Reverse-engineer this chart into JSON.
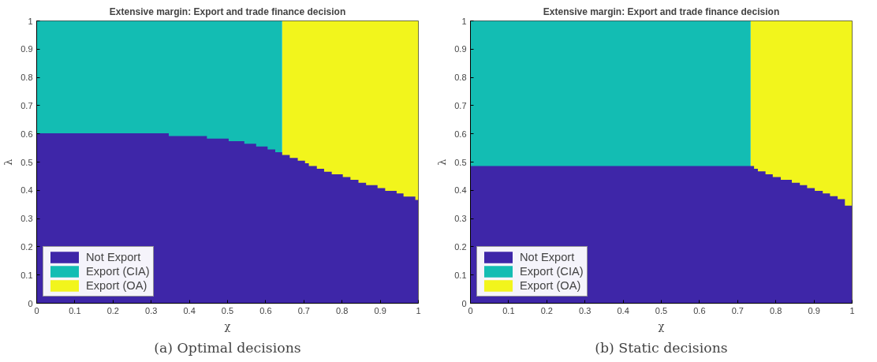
{
  "chart_data": [
    {
      "type": "area",
      "title": "Extensive margin: Export and trade finance decision",
      "xlabel": "χ",
      "ylabel": "λ",
      "annotations": [
        "(a) Optimal decisions"
      ],
      "legend": "bottom left",
      "grid": false,
      "xlim": [
        0,
        1
      ],
      "ylim": [
        0,
        1
      ],
      "xticks": [
        0,
        0.1,
        0.2,
        0.3,
        0.4,
        0.5,
        0.6,
        0.7,
        0.8,
        0.9,
        1
      ],
      "yticks": [
        0,
        0.1,
        0.2,
        0.3,
        0.4,
        0.5,
        0.6,
        0.7,
        0.8,
        0.9,
        1
      ],
      "series": [
        {
          "name": "Not Export",
          "color": "#3e26a8",
          "x": [
            0,
            0.346,
            0.346,
            0.446,
            0.446,
            0.503,
            0.503,
            0.544,
            0.544,
            0.575,
            0.575,
            0.605,
            0.605,
            0.625,
            0.625,
            0.643,
            0.643,
            0.663,
            0.663,
            0.684,
            0.684,
            0.703,
            0.703,
            0.713,
            0.713,
            0.734,
            0.734,
            0.753,
            0.753,
            0.773,
            0.773,
            0.802,
            0.802,
            0.822,
            0.822,
            0.843,
            0.843,
            0.863,
            0.863,
            0.893,
            0.893,
            0.913,
            0.913,
            0.943,
            0.943,
            0.961,
            0.961,
            0.992,
            0.992,
            1
          ],
          "values": [
            0.602,
            0.602,
            0.592,
            0.592,
            0.583,
            0.583,
            0.574,
            0.574,
            0.565,
            0.565,
            0.555,
            0.555,
            0.545,
            0.545,
            0.535,
            0.535,
            0.525,
            0.525,
            0.515,
            0.515,
            0.505,
            0.505,
            0.496,
            0.496,
            0.486,
            0.486,
            0.476,
            0.476,
            0.466,
            0.466,
            0.457,
            0.457,
            0.447,
            0.447,
            0.437,
            0.437,
            0.427,
            0.427,
            0.418,
            0.418,
            0.408,
            0.408,
            0.398,
            0.398,
            0.389,
            0.389,
            0.378,
            0.378,
            0.366,
            0.366
          ]
        },
        {
          "name": "Export (CIA)",
          "color": "#13bdb3",
          "x": [
            0,
            0.643
          ],
          "values": [
            1,
            1
          ]
        },
        {
          "name": "Export (OA)",
          "color": "#f2f51c",
          "x": [
            0.643,
            1
          ],
          "values": [
            1,
            1
          ]
        }
      ]
    },
    {
      "type": "area",
      "title": "Extensive margin: Export and trade finance decision",
      "xlabel": "χ",
      "ylabel": "λ",
      "annotations": [
        "(b) Static decisions"
      ],
      "legend": "bottom left",
      "grid": false,
      "xlim": [
        0,
        1
      ],
      "ylim": [
        0,
        1
      ],
      "xticks": [
        0,
        0.1,
        0.2,
        0.3,
        0.4,
        0.5,
        0.6,
        0.7,
        0.8,
        0.9,
        1
      ],
      "yticks": [
        0,
        0.1,
        0.2,
        0.3,
        0.4,
        0.5,
        0.6,
        0.7,
        0.8,
        0.9,
        1
      ],
      "series": [
        {
          "name": "Not Export",
          "color": "#3e26a8",
          "x": [
            0,
            0.743,
            0.743,
            0.753,
            0.753,
            0.773,
            0.773,
            0.792,
            0.792,
            0.813,
            0.813,
            0.842,
            0.842,
            0.863,
            0.863,
            0.882,
            0.882,
            0.902,
            0.902,
            0.923,
            0.923,
            0.942,
            0.942,
            0.962,
            0.962,
            0.981,
            0.981,
            1
          ],
          "values": [
            0.486,
            0.486,
            0.476,
            0.476,
            0.467,
            0.467,
            0.457,
            0.457,
            0.447,
            0.447,
            0.437,
            0.437,
            0.427,
            0.427,
            0.418,
            0.418,
            0.408,
            0.408,
            0.398,
            0.398,
            0.389,
            0.389,
            0.379,
            0.379,
            0.369,
            0.369,
            0.346,
            0.346
          ]
        },
        {
          "name": "Export (CIA)",
          "color": "#13bdb3",
          "x": [
            0,
            0.734
          ],
          "values": [
            1,
            1
          ]
        },
        {
          "name": "Export (OA)",
          "color": "#f2f51c",
          "x": [
            0.734,
            1
          ],
          "values": [
            1,
            1
          ]
        }
      ]
    }
  ]
}
